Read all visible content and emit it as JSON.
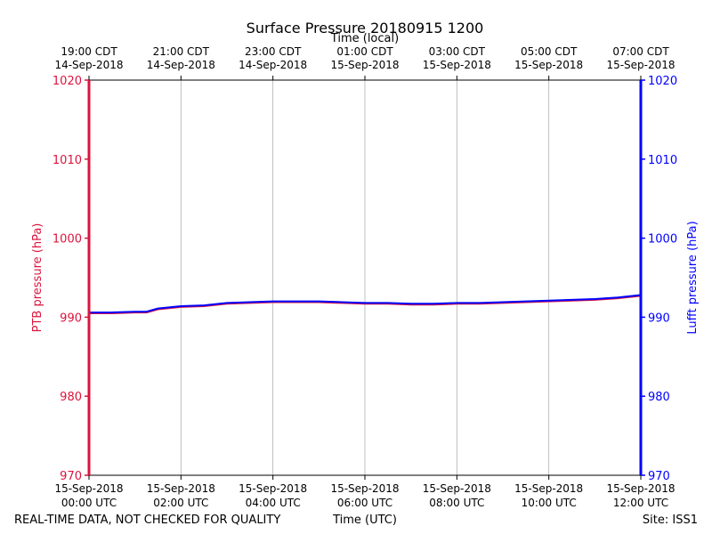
{
  "chart_data": {
    "type": "line",
    "title": "Surface Pressure 20180915 1200",
    "top_axis_label": "Time (local)",
    "xlabel": "Time (UTC)",
    "ylabel_left": "PTB pressure (hPa)",
    "ylabel_right": "Lufft pressure (hPa)",
    "footer_left": "REAL-TIME DATA, NOT CHECKED FOR QUALITY",
    "footer_right": "Site: ISS1",
    "xlim_hours": [
      0,
      12
    ],
    "ylim": [
      970,
      1020
    ],
    "yticks": [
      970,
      980,
      990,
      1000,
      1010,
      1020
    ],
    "grid": "vertical",
    "bottom_ticks": [
      {
        "hour": 0,
        "date": "15-Sep-2018",
        "time": "00:00 UTC"
      },
      {
        "hour": 2,
        "date": "15-Sep-2018",
        "time": "02:00 UTC"
      },
      {
        "hour": 4,
        "date": "15-Sep-2018",
        "time": "04:00 UTC"
      },
      {
        "hour": 6,
        "date": "15-Sep-2018",
        "time": "06:00 UTC"
      },
      {
        "hour": 8,
        "date": "15-Sep-2018",
        "time": "08:00 UTC"
      },
      {
        "hour": 10,
        "date": "15-Sep-2018",
        "time": "10:00 UTC"
      },
      {
        "hour": 12,
        "date": "15-Sep-2018",
        "time": "12:00 UTC"
      }
    ],
    "top_ticks": [
      {
        "hour": 0,
        "time": "19:00 CDT",
        "date": "14-Sep-2018"
      },
      {
        "hour": 2,
        "time": "21:00 CDT",
        "date": "14-Sep-2018"
      },
      {
        "hour": 4,
        "time": "23:00 CDT",
        "date": "14-Sep-2018"
      },
      {
        "hour": 6,
        "time": "01:00 CDT",
        "date": "15-Sep-2018"
      },
      {
        "hour": 8,
        "time": "03:00 CDT",
        "date": "15-Sep-2018"
      },
      {
        "hour": 10,
        "time": "05:00 CDT",
        "date": "15-Sep-2018"
      },
      {
        "hour": 12,
        "time": "07:00 CDT",
        "date": "15-Sep-2018"
      }
    ],
    "colors": {
      "ptb": "#dc143c",
      "lufft": "#0000ff",
      "grid": "#b0b0b0"
    },
    "series": [
      {
        "key": "ptb",
        "x": [
          0,
          0.5,
          1,
          1.25,
          1.5,
          2,
          2.5,
          3,
          3.5,
          4,
          4.5,
          5,
          5.5,
          6,
          6.5,
          7,
          7.5,
          8,
          8.5,
          9,
          9.5,
          10,
          10.5,
          11,
          11.5,
          12
        ],
        "y": [
          990.5,
          990.5,
          990.6,
          990.6,
          991.0,
          991.3,
          991.4,
          991.7,
          991.8,
          991.9,
          991.9,
          991.9,
          991.8,
          991.7,
          991.7,
          991.6,
          991.6,
          991.7,
          991.7,
          991.8,
          991.9,
          992.0,
          992.1,
          992.2,
          992.4,
          992.7
        ]
      },
      {
        "key": "lufft",
        "x": [
          0,
          0.5,
          1,
          1.25,
          1.5,
          2,
          2.5,
          3,
          3.5,
          4,
          4.5,
          5,
          5.5,
          6,
          6.5,
          7,
          7.5,
          8,
          8.5,
          9,
          9.5,
          10,
          10.5,
          11,
          11.5,
          12
        ],
        "y": [
          990.6,
          990.6,
          990.7,
          990.7,
          991.1,
          991.4,
          991.5,
          991.8,
          991.9,
          992.0,
          992.0,
          992.0,
          991.9,
          991.8,
          991.8,
          991.7,
          991.7,
          991.8,
          991.8,
          991.9,
          992.0,
          992.1,
          992.2,
          992.3,
          992.5,
          992.8
        ]
      }
    ]
  }
}
